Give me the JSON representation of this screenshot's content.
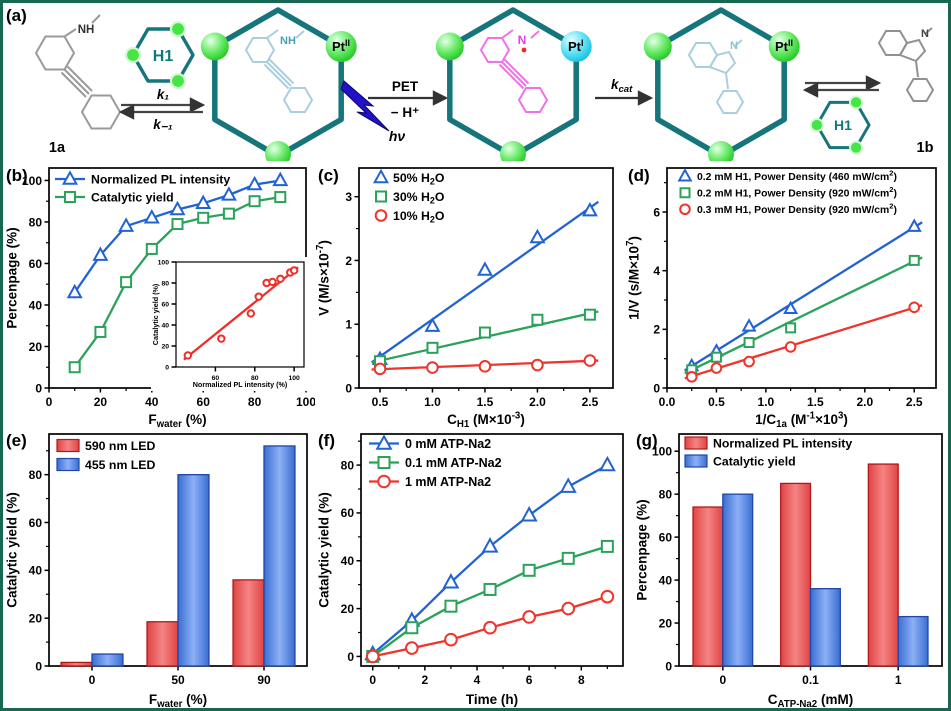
{
  "panels": {
    "a": "(a)",
    "b": "(b)",
    "c": "(c)",
    "d": "(d)",
    "e": "(e)",
    "f": "(f)",
    "g": "(g)"
  },
  "scheme": {
    "compound_1a": "1a",
    "compound_1b": "1b",
    "h1": "H1",
    "k1": "k₁",
    "k_minus_1": "k₋₁",
    "kcat_k": "k",
    "kcat_sub": "cat",
    "pet": "PET",
    "minus_h": "− H⁺",
    "hv": "hν",
    "pt": "Pt",
    "pt2_sup": "II",
    "pt1_sup": "I",
    "nh_free": "NH",
    "nh_caged": "NH",
    "n_radical": "N",
    "n_indoline": "N",
    "n_1b": "N",
    "colors": {
      "cage_teal": "#15757b",
      "sphere_green": "#3ce43c",
      "sphere_cyan": "#2ec8e8",
      "guest_pale_blue": "#a9cede",
      "radical_magenta": "#ef72e8",
      "free_molecule_gray": "#9a9a9a",
      "bolt_blue": "#2012c8"
    }
  },
  "chart_data": [
    {
      "id": "chart-b",
      "panel": "(b)",
      "type": "line",
      "xlabel": "F_{water} (%)",
      "ylabel": "Percenpage (%)",
      "xlim": [
        0,
        100
      ],
      "ylim": [
        0,
        106
      ],
      "xticks": [
        0,
        20,
        40,
        60,
        80,
        100
      ],
      "yticks": [
        0,
        20,
        40,
        60,
        80,
        100
      ],
      "xminor": 10,
      "yminor": 10,
      "tick_fs": 12,
      "label_fs": 13.5,
      "msize": 5.5,
      "margins": {
        "l": 46,
        "r": 9,
        "t": 5,
        "b": 40
      },
      "legend": {
        "x": 6,
        "y": 2,
        "rh": 18,
        "fs": 12.3,
        "line": true
      },
      "series": [
        {
          "name": "Normalized PL intensity",
          "color": "#2163d2",
          "marker": "triangle",
          "connect": true,
          "x": [
            10,
            20,
            30,
            40,
            50,
            60,
            70,
            80,
            90
          ],
          "y": [
            46,
            64,
            78,
            82,
            86,
            89,
            93,
            98,
            100
          ]
        },
        {
          "name": "Catalytic yield",
          "color": "#2aa25a",
          "marker": "square",
          "connect": true,
          "x": [
            10,
            20,
            30,
            40,
            50,
            60,
            70,
            80,
            90
          ],
          "y": [
            10,
            27,
            51,
            67,
            79,
            82,
            84,
            90,
            92
          ]
        }
      ]
    },
    {
      "id": "chart-b-inset",
      "panel": "(b) inset",
      "type": "scatter",
      "xlabel": "Normalized PL intensity (%)",
      "ylabel": "Catalytic yield (%)",
      "xlim": [
        40,
        105
      ],
      "ylim": [
        0,
        100
      ],
      "xticks": [
        60,
        80,
        100
      ],
      "yticks": [
        0,
        20,
        40,
        60,
        80,
        100
      ],
      "tick_fs": 6.8,
      "label_fs": 7.2,
      "msize": 3.4,
      "frame": 1.2,
      "margins": {
        "l": 25,
        "r": 6,
        "t": 5,
        "b": 24
      },
      "series": [
        {
          "name": "Catalytic yield vs PL",
          "color": "#ee2e28",
          "marker": "circle",
          "fit": [
            [
              44,
              7
            ],
            [
              102,
              95
            ]
          ],
          "x": [
            46,
            63,
            78,
            82,
            86,
            89,
            93,
            98,
            100
          ],
          "y": [
            11,
            27,
            51,
            67,
            80,
            81,
            84,
            90,
            92
          ]
        }
      ]
    },
    {
      "id": "chart-c",
      "panel": "(c)",
      "type": "line",
      "xlabel": "C_{H1} (M×10^{-3})",
      "ylabel": "V (M/s×10^{-7})",
      "xlim": [
        0.3,
        2.72
      ],
      "ylim": [
        0,
        3.45
      ],
      "xticks": [
        0.5,
        1.0,
        1.5,
        2.0,
        2.5
      ],
      "xdec": 1,
      "yticks": [
        0,
        1,
        2,
        3
      ],
      "xminor": 0.25,
      "yminor": 0.5,
      "tick_fs": 12,
      "label_fs": 13.5,
      "msize": 5.5,
      "margins": {
        "l": 44,
        "r": 12,
        "t": 5,
        "b": 40
      },
      "legend": {
        "x": 14,
        "y": 0,
        "rh": 19,
        "fs": 12.3,
        "line": false
      },
      "series": [
        {
          "name": "50% H_{2}O",
          "color": "#2163d2",
          "marker": "triangle",
          "fit": [
            [
              0.42,
              0.4
            ],
            [
              2.58,
              2.92
            ]
          ],
          "x": [
            0.5,
            1.0,
            1.5,
            2.0,
            2.5
          ],
          "y": [
            0.45,
            0.97,
            1.85,
            2.36,
            2.78
          ]
        },
        {
          "name": "30% H_{2}O",
          "color": "#2aa25a",
          "marker": "square",
          "fit": [
            [
              0.42,
              0.4
            ],
            [
              2.58,
              1.2
            ]
          ],
          "x": [
            0.5,
            1.0,
            1.5,
            2.0,
            2.5
          ],
          "y": [
            0.42,
            0.63,
            0.87,
            1.07,
            1.15
          ]
        },
        {
          "name": "10% H_{2}O",
          "color": "#ef342c",
          "marker": "circle",
          "fit": [
            [
              0.42,
              0.29
            ],
            [
              2.58,
              0.43
            ]
          ],
          "x": [
            0.5,
            1.0,
            1.5,
            2.0,
            2.5
          ],
          "y": [
            0.3,
            0.32,
            0.34,
            0.36,
            0.43
          ]
        }
      ]
    },
    {
      "id": "chart-d",
      "panel": "(d)",
      "type": "line",
      "xlabel": "1/C_{1a} (M^{-1}×10^{3})",
      "ylabel": "1/V (s/M×10^{7})",
      "xlim": [
        0,
        2.72
      ],
      "ylim": [
        0,
        7.5
      ],
      "xticks": [
        0.0,
        0.5,
        1.0,
        1.5,
        2.0,
        2.5
      ],
      "xdec": 1,
      "yticks": [
        0,
        2,
        4,
        6
      ],
      "xminor": 0.25,
      "yminor": 1,
      "tick_fs": 12,
      "label_fs": 13.5,
      "msize": 5,
      "margins": {
        "l": 42,
        "r": 12,
        "t": 5,
        "b": 40
      },
      "legend": {
        "x": 10,
        "y": 0,
        "rh": 16.5,
        "fs": 10.4,
        "line": false
      },
      "series": [
        {
          "name": "0.2 mM H1, Power Density (460 mW/cm^{2})",
          "color": "#2163d2",
          "marker": "triangle",
          "fit": [
            [
              0.18,
              0.6
            ],
            [
              2.58,
              5.65
            ]
          ],
          "x": [
            0.25,
            0.5,
            0.83,
            1.25,
            2.5
          ],
          "y": [
            0.75,
            1.25,
            2.1,
            2.7,
            5.5
          ]
        },
        {
          "name": "0.2 mM H1, Power Density (920 mW/cm^{2})",
          "color": "#2aa25a",
          "marker": "square",
          "fit": [
            [
              0.18,
              0.5
            ],
            [
              2.58,
              4.45
            ]
          ],
          "x": [
            0.25,
            0.5,
            0.83,
            1.25,
            2.5
          ],
          "y": [
            0.62,
            1.05,
            1.55,
            2.05,
            4.35
          ]
        },
        {
          "name": "0.3 mM H1, Power Density (920 mW/cm^{2})",
          "color": "#ef342c",
          "marker": "circle",
          "fit": [
            [
              0.18,
              0.33
            ],
            [
              2.58,
              2.82
            ]
          ],
          "x": [
            0.25,
            0.5,
            0.83,
            1.25,
            2.5
          ],
          "y": [
            0.38,
            0.68,
            0.9,
            1.4,
            2.75
          ]
        }
      ]
    },
    {
      "id": "chart-e",
      "panel": "(e)",
      "type": "bar",
      "xlabel": "F_{water} (%)",
      "ylabel": "Catalytic yield (%)",
      "categories": [
        "0",
        "50",
        "90"
      ],
      "ylim": [
        0,
        97
      ],
      "yticks": [
        0,
        20,
        40,
        60,
        80
      ],
      "yminor": 10,
      "tick_fs": 12,
      "label_fs": 13.5,
      "barw": 0.36,
      "margins": {
        "l": 46,
        "r": 8,
        "t": 6,
        "b": 42
      },
      "legend": {
        "x": 8,
        "y": 2,
        "rh": 19,
        "fs": 12.3
      },
      "series": [
        {
          "name": "590 nm LED",
          "palette": "red",
          "values": [
            1.5,
            18.5,
            36
          ]
        },
        {
          "name": "455 nm LED",
          "palette": "blue",
          "values": [
            5,
            80,
            92
          ]
        }
      ]
    },
    {
      "id": "chart-f",
      "panel": "(f)",
      "type": "line",
      "xlabel": "Time (h)",
      "ylabel": "Catalytic yield (%)",
      "xlim": [
        -0.45,
        9.6
      ],
      "ylim": [
        -4,
        93
      ],
      "xticks": [
        0,
        2,
        4,
        6,
        8
      ],
      "yticks": [
        0,
        20,
        40,
        60,
        80
      ],
      "xminor": 1,
      "yminor": 10,
      "tick_fs": 12,
      "label_fs": 13.5,
      "msize": 6,
      "margins": {
        "l": 46,
        "r": 10,
        "t": 6,
        "b": 42
      },
      "legend": {
        "x": 8,
        "y": 0,
        "rh": 19,
        "fs": 12.5,
        "line": true
      },
      "series": [
        {
          "name": "0 mM  ATP-Na2",
          "color": "#2163d2",
          "marker": "triangle",
          "connect": true,
          "x": [
            0,
            1.5,
            3,
            4.5,
            6,
            7.5,
            9
          ],
          "y": [
            1,
            15,
            31,
            46,
            59,
            71,
            80
          ]
        },
        {
          "name": "0.1 mM  ATP-Na2",
          "color": "#2aa25a",
          "marker": "square",
          "connect": true,
          "x": [
            0,
            1.5,
            3,
            4.5,
            6,
            7.5,
            9
          ],
          "y": [
            0,
            12,
            21,
            28,
            36,
            41,
            46
          ]
        },
        {
          "name": "1 mM  ATP-Na2",
          "color": "#ef342c",
          "marker": "circle",
          "connect": true,
          "x": [
            0,
            1.5,
            3,
            4.5,
            6,
            7.5,
            9
          ],
          "y": [
            0,
            3.5,
            7,
            12,
            16.5,
            20,
            25
          ]
        }
      ]
    },
    {
      "id": "chart-g",
      "panel": "(g)",
      "type": "bar",
      "xlabel": "C_{ATP-Na2} (mM)",
      "ylabel": "Percenpage (%)",
      "categories": [
        "0",
        "0.1",
        "1"
      ],
      "ylim": [
        0,
        108
      ],
      "yticks": [
        0,
        20,
        40,
        60,
        80,
        100
      ],
      "yminor": 10,
      "tick_fs": 12,
      "label_fs": 13.5,
      "barw": 0.34,
      "margins": {
        "l": 46,
        "r": 6,
        "t": 6,
        "b": 42
      },
      "legend": {
        "x": 6,
        "y": 0,
        "rh": 18,
        "fs": 12.3
      },
      "series": [
        {
          "name": "Normalized PL intensity",
          "palette": "red",
          "values": [
            74,
            85,
            94
          ]
        },
        {
          "name": "Catalytic yield",
          "palette": "blue",
          "values": [
            80,
            36,
            23
          ]
        }
      ]
    }
  ]
}
